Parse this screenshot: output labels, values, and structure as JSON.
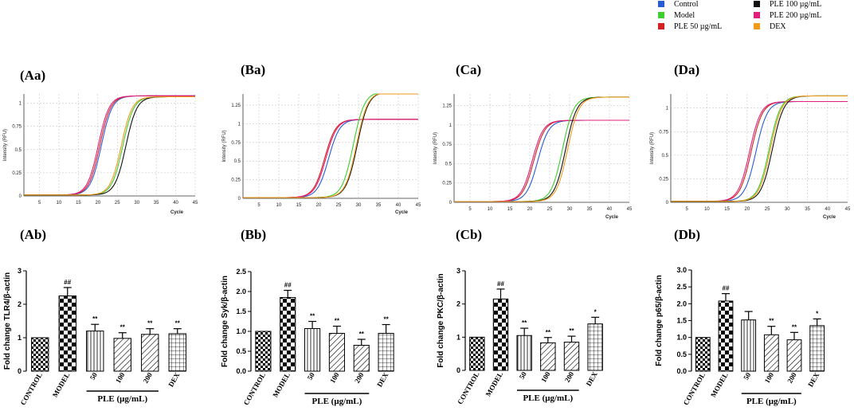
{
  "legend": {
    "items": [
      {
        "label": "Control",
        "color": "#2a5bd7"
      },
      {
        "label": "Model",
        "color": "#3ecf2e"
      },
      {
        "label": "PLE 50 µg/mL",
        "color": "#d42020"
      },
      {
        "label": "PLE 100 µg/mL",
        "color": "#111111"
      },
      {
        "label": "PLE 200 µg/mL",
        "color": "#e0207a"
      },
      {
        "label": "DEX",
        "color": "#f29a1a"
      }
    ]
  },
  "chart_data": [
    {
      "type": "line",
      "panel_label": "(Aa)",
      "title": "",
      "xlabel": "Cycle",
      "ylabel": "Intensity (RFU)",
      "xlim": [
        1,
        45
      ],
      "ylim": [
        0,
        1.1
      ],
      "xticks": [
        "5",
        "10",
        "15",
        "20",
        "25",
        "30",
        "35",
        "40",
        "45"
      ],
      "yticks": [
        "0",
        "0.25",
        "0.5",
        "0.75",
        "1"
      ],
      "grid": true,
      "series_groups": [
        {
          "midpoint": 20.5,
          "plateau": 1.07,
          "curves": [
            {
              "name": "Control",
              "color": "#2a5bd7",
              "offset": 0.4
            },
            {
              "name": "PLE 50 µg/mL",
              "color": "#d42020",
              "offset": 0.0
            },
            {
              "name": "PLE 200 µg/mL",
              "color": "#e0207a",
              "offset": -0.4
            }
          ]
        },
        {
          "midpoint": 27.0,
          "plateau": 1.06,
          "curves": [
            {
              "name": "Model",
              "color": "#3ecf2e",
              "offset": -0.6
            },
            {
              "name": "PLE 100 µg/mL",
              "color": "#111111",
              "offset": 0.2
            },
            {
              "name": "DEX",
              "color": "#f29a1a",
              "offset": -1.0
            }
          ]
        }
      ]
    },
    {
      "type": "line",
      "panel_label": "(Ba)",
      "title": "",
      "xlabel": "Cycle",
      "ylabel": "Intensity (RFU)",
      "xlim": [
        1,
        45
      ],
      "ylim": [
        0,
        1.4
      ],
      "xticks": [
        "5",
        "10",
        "15",
        "20",
        "25",
        "30",
        "35",
        "40",
        "45"
      ],
      "yticks": [
        "0",
        "0.25",
        "0.5",
        "0.75",
        "1",
        "1.25"
      ],
      "grid": true,
      "series_groups": [
        {
          "midpoint": 21.5,
          "plateau": 1.05,
          "curves": [
            {
              "name": "Control",
              "color": "#2a5bd7",
              "offset": 1.0
            },
            {
              "name": "PLE 50 µg/mL",
              "color": "#d42020",
              "offset": 0.0
            },
            {
              "name": "PLE 200 µg/mL",
              "color": "#e0207a",
              "offset": 0.3
            }
          ]
        },
        {
          "midpoint": 29.5,
          "plateau": 1.42,
          "curves": [
            {
              "name": "Model",
              "color": "#3ecf2e",
              "offset": -0.8
            },
            {
              "name": "PLE 100 µg/mL",
              "color": "#111111",
              "offset": 0.2
            },
            {
              "name": "DEX",
              "color": "#f29a1a",
              "offset": 0.0
            }
          ]
        }
      ]
    },
    {
      "type": "line",
      "panel_label": "(Ca)",
      "title": "",
      "xlabel": "Cycle",
      "ylabel": "Intensity (RFU)",
      "xlim": [
        1,
        45
      ],
      "ylim": [
        0,
        1.4
      ],
      "xticks": [
        "5",
        "10",
        "15",
        "20",
        "25",
        "30",
        "35",
        "40",
        "45"
      ],
      "yticks": [
        "0",
        "0.25",
        "0.5",
        "0.75",
        "1",
        "1.25"
      ],
      "grid": true,
      "series_groups": [
        {
          "midpoint": 21.0,
          "plateau": 1.05,
          "curves": [
            {
              "name": "Control",
              "color": "#2a5bd7",
              "offset": 1.0
            },
            {
              "name": "PLE 50 µg/mL",
              "color": "#d42020",
              "offset": 0.0
            },
            {
              "name": "PLE 200 µg/mL",
              "color": "#e0207a",
              "offset": -0.4
            }
          ]
        },
        {
          "midpoint": 29.0,
          "plateau": 1.35,
          "curves": [
            {
              "name": "Model",
              "color": "#3ecf2e",
              "offset": -0.8
            },
            {
              "name": "PLE 100 µg/mL",
              "color": "#111111",
              "offset": 0.0
            },
            {
              "name": "DEX",
              "color": "#f29a1a",
              "offset": 0.5
            }
          ]
        }
      ]
    },
    {
      "type": "line",
      "panel_label": "(Da)",
      "title": "",
      "xlabel": "Cycle",
      "ylabel": "Intensity (RFU)",
      "xlim": [
        1,
        45
      ],
      "ylim": [
        0,
        1.15
      ],
      "xticks": [
        "5",
        "10",
        "15",
        "20",
        "25",
        "30",
        "35",
        "40",
        "45"
      ],
      "yticks": [
        "0",
        "0.25",
        "0.5",
        "0.75",
        "1"
      ],
      "grid": true,
      "series_groups": [
        {
          "midpoint": 21.0,
          "plateau": 1.06,
          "curves": [
            {
              "name": "Control",
              "color": "#2a5bd7",
              "offset": 1.2
            },
            {
              "name": "PLE 50 µg/mL",
              "color": "#d42020",
              "offset": 0.0
            },
            {
              "name": "PLE 200 µg/mL",
              "color": "#e0207a",
              "offset": -0.4
            }
          ]
        },
        {
          "midpoint": 26.0,
          "plateau": 1.12,
          "curves": [
            {
              "name": "Model",
              "color": "#3ecf2e",
              "offset": -0.5
            },
            {
              "name": "PLE 100 µg/mL",
              "color": "#111111",
              "offset": 0.3
            },
            {
              "name": "DEX",
              "color": "#f29a1a",
              "offset": -0.2
            }
          ]
        }
      ]
    },
    {
      "type": "bar",
      "panel_label": "(Ab)",
      "ylabel": "Fold change TLR4/β-actin",
      "categories": [
        "CONTROL",
        "MODEL",
        "50",
        "100",
        "200",
        "DEX"
      ],
      "values": [
        1.0,
        2.25,
        1.2,
        0.98,
        1.1,
        1.12
      ],
      "errors": [
        0.0,
        0.25,
        0.2,
        0.17,
        0.17,
        0.15
      ],
      "significance": [
        "",
        "##",
        "**",
        "**",
        "**",
        "**"
      ],
      "patterns": [
        "checker",
        "checker-large",
        "vertical",
        "diagonal",
        "diagonal",
        "grid"
      ],
      "ylim": [
        0,
        3
      ],
      "yticks": [
        "0",
        "1",
        "2",
        "3"
      ],
      "group_label": "PLE (μg/mL)"
    },
    {
      "type": "bar",
      "panel_label": "(Bb)",
      "ylabel": "Fold change Syk/β-actin",
      "categories": [
        "CONTROL",
        "MODEL",
        "50",
        "100",
        "200",
        "DEX"
      ],
      "values": [
        1.0,
        1.85,
        1.07,
        0.95,
        0.65,
        0.95
      ],
      "errors": [
        0.0,
        0.18,
        0.18,
        0.18,
        0.15,
        0.22
      ],
      "significance": [
        "",
        "##",
        "**",
        "**",
        "**",
        "**"
      ],
      "patterns": [
        "checker",
        "checker-large",
        "vertical",
        "diagonal",
        "diagonal",
        "grid"
      ],
      "ylim": [
        0,
        2.5
      ],
      "yticks": [
        "0.0",
        "0.5",
        "1.0",
        "1.5",
        "2.0",
        "2.5"
      ],
      "group_label": "PLE (μg/mL)"
    },
    {
      "type": "bar",
      "panel_label": "(Cb)",
      "ylabel": "Fold change PKC/β-actin",
      "categories": [
        "CONTROL",
        "MODEL",
        "50",
        "100",
        "200",
        "DEX"
      ],
      "values": [
        1.0,
        2.15,
        1.05,
        0.83,
        0.85,
        1.4
      ],
      "errors": [
        0.0,
        0.3,
        0.22,
        0.16,
        0.18,
        0.2
      ],
      "significance": [
        "",
        "##",
        "**",
        "**",
        "**",
        "*"
      ],
      "patterns": [
        "checker",
        "checker-large",
        "vertical",
        "diagonal",
        "diagonal",
        "grid"
      ],
      "ylim": [
        0,
        3
      ],
      "yticks": [
        "0",
        "1",
        "2",
        "3"
      ],
      "group_label": "PLE (μg/mL)"
    },
    {
      "type": "bar",
      "panel_label": "(Db)",
      "ylabel": "Fold change p65/β-actin",
      "categories": [
        "CONTROL",
        "MODEL",
        "50",
        "100",
        "200",
        "DEX"
      ],
      "values": [
        1.0,
        2.08,
        1.52,
        1.08,
        0.93,
        1.35
      ],
      "errors": [
        0.0,
        0.22,
        0.25,
        0.25,
        0.22,
        0.2
      ],
      "significance": [
        "",
        "##",
        "",
        "**",
        "**",
        "*"
      ],
      "patterns": [
        "checker",
        "checker-large",
        "vertical",
        "diagonal",
        "diagonal",
        "grid"
      ],
      "ylim": [
        0,
        3.0
      ],
      "yticks": [
        "0.0",
        "0.5",
        "1.0",
        "1.5",
        "2.0",
        "2.5",
        "3.0"
      ],
      "group_label": "PLE (μg/mL)"
    }
  ]
}
